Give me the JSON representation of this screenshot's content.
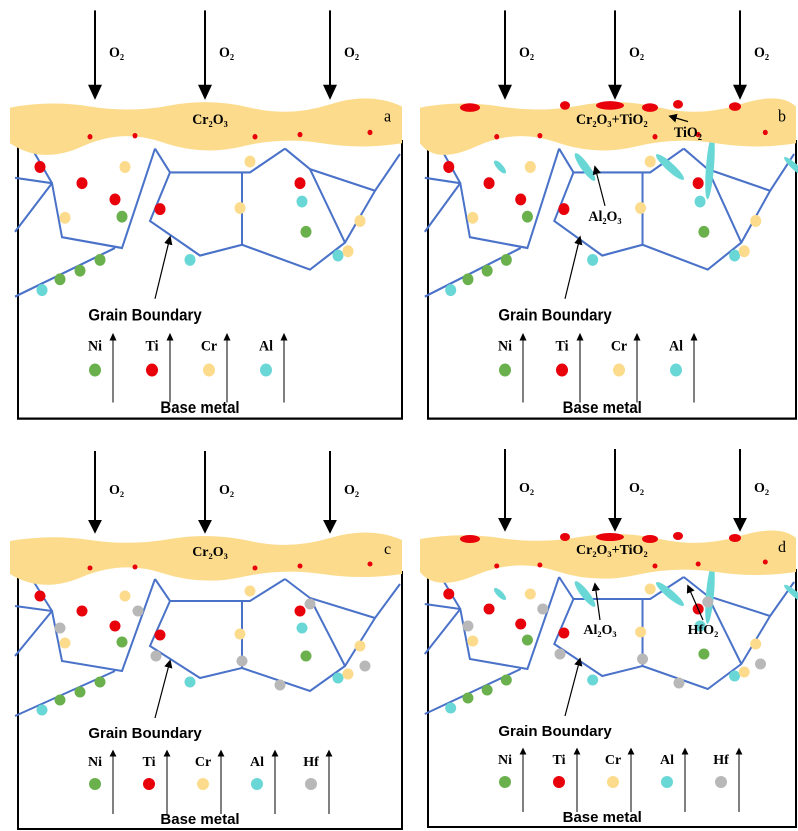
{
  "panels": [
    {
      "letter": "a",
      "oxide": "Cr₂O₃",
      "o2": [
        "O₂",
        "O₂",
        "O₂"
      ],
      "annotations": [],
      "grain_boundary": "Grain Boundary",
      "elements": [
        "Ni",
        "Ti",
        "Cr",
        "Al"
      ],
      "base": "Base metal"
    },
    {
      "letter": "b",
      "oxide": "Cr₂O₃+TiO₂",
      "o2": [
        "O₂",
        "O₂",
        "O₂"
      ],
      "annotations": [
        "TiO₂",
        "Al₂O₃"
      ],
      "grain_boundary": "Grain Boundary",
      "elements": [
        "Ni",
        "Ti",
        "Cr",
        "Al"
      ],
      "base": "Base metal"
    },
    {
      "letter": "c",
      "oxide": "Cr₂O₃",
      "o2": [
        "O₂",
        "O₂",
        "O₂"
      ],
      "annotations": [],
      "grain_boundary": "Grain Boundary",
      "elements": [
        "Ni",
        "Ti",
        "Cr",
        "Al",
        "Hf"
      ],
      "base": "Base metal"
    },
    {
      "letter": "d",
      "oxide": "Cr₂O₃+TiO₂",
      "o2": [
        "O₂",
        "O₂",
        "O₂"
      ],
      "annotations": [
        "Al₂O₃",
        "HfO₂"
      ],
      "grain_boundary": "Grain Boundary",
      "elements": [
        "Ni",
        "Ti",
        "Cr",
        "Al",
        "Hf"
      ],
      "base": "Base metal"
    }
  ]
}
